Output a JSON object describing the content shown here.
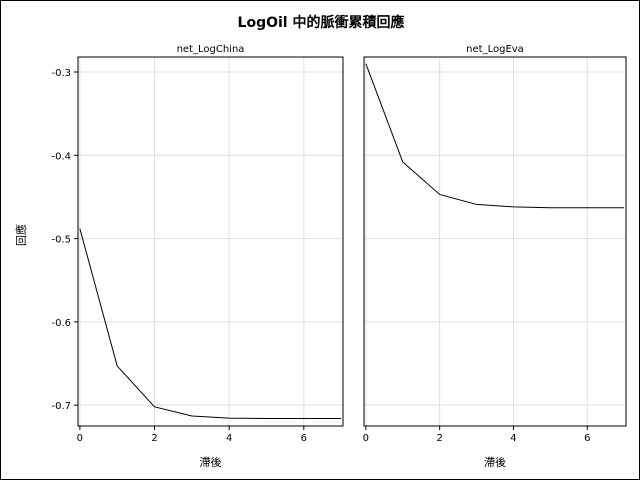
{
  "chart_data": {
    "type": "line",
    "title": "LogOil 中的脈衝累積回應",
    "ylabel": "回應",
    "xlabel": "滯後",
    "ylim": [
      -0.725,
      -0.282
    ],
    "xlim": [
      -0.05,
      7.05
    ],
    "x_ticks": [
      0,
      2,
      4,
      6
    ],
    "y_ticks": [
      -0.3,
      -0.4,
      -0.5,
      -0.6,
      -0.7
    ],
    "y_tick_labels": [
      "-0.3",
      "-0.4",
      "-0.5",
      "-0.6",
      "-0.7"
    ],
    "grid": true,
    "line_color": "#000000",
    "grid_color": "#e0e0e0",
    "panels": [
      {
        "title": "net_LogChina",
        "x": [
          0,
          1,
          2,
          3,
          4,
          5,
          6,
          7
        ],
        "y": [
          -0.488,
          -0.653,
          -0.702,
          -0.713,
          -0.7155,
          -0.716,
          -0.716,
          -0.716
        ]
      },
      {
        "title": "net_LogEva",
        "x": [
          0,
          1,
          2,
          3,
          4,
          5,
          6,
          7
        ],
        "y": [
          -0.29,
          -0.408,
          -0.447,
          -0.459,
          -0.462,
          -0.463,
          -0.463,
          -0.463
        ]
      }
    ]
  }
}
